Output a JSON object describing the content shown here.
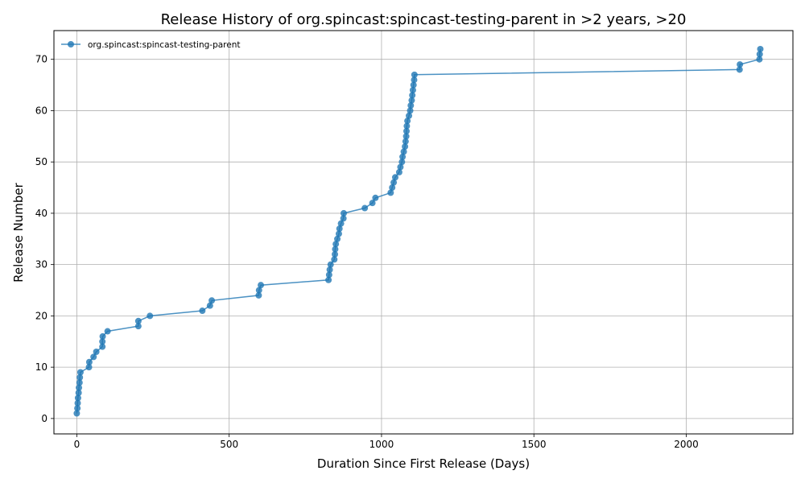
{
  "chart_data": {
    "type": "line",
    "title": "Release History of org.spincast:spincast-testing-parent in >2 years, >20",
    "xlabel": "Duration Since First Release (Days)",
    "ylabel": "Release Number",
    "xlim": [
      -75,
      2350
    ],
    "ylim": [
      -3,
      75.6
    ],
    "xticks": [
      0,
      500,
      1000,
      1500,
      2000
    ],
    "yticks": [
      0,
      10,
      20,
      30,
      40,
      50,
      60,
      70
    ],
    "grid": true,
    "legend_position": "top-left",
    "series": [
      {
        "name": "org.spincast:spincast-testing-parent",
        "color": "#1f77b4",
        "marker": "circle",
        "x": [
          0,
          2,
          3,
          4,
          6,
          7,
          9,
          10,
          12,
          40,
          41,
          55,
          64,
          84,
          84,
          85,
          101,
          202,
          202,
          240,
          412,
          437,
          443,
          597,
          598,
          604,
          826,
          828,
          830,
          833,
          845,
          847,
          848,
          850,
          855,
          860,
          862,
          867,
          875,
          876,
          945,
          970,
          980,
          1030,
          1035,
          1040,
          1045,
          1058,
          1062,
          1067,
          1069,
          1073,
          1077,
          1079,
          1081,
          1082,
          1083,
          1085,
          1090,
          1094,
          1096,
          1099,
          1101,
          1103,
          1105,
          1107,
          1108,
          2175,
          2176,
          2240,
          2241,
          2243
        ],
        "y": [
          1,
          2,
          3,
          4,
          5,
          6,
          7,
          8,
          9,
          10,
          11,
          12,
          13,
          14,
          15,
          16,
          17,
          18,
          19,
          20,
          21,
          22,
          23,
          24,
          25,
          26,
          27,
          28,
          29,
          30,
          31,
          32,
          33,
          34,
          35,
          36,
          37,
          38,
          39,
          40,
          41,
          42,
          43,
          44,
          45,
          46,
          47,
          48,
          49,
          50,
          51,
          52,
          53,
          54,
          55,
          56,
          57,
          58,
          59,
          60,
          61,
          62,
          63,
          64,
          65,
          66,
          67,
          68,
          69,
          70,
          71,
          72
        ]
      }
    ]
  }
}
